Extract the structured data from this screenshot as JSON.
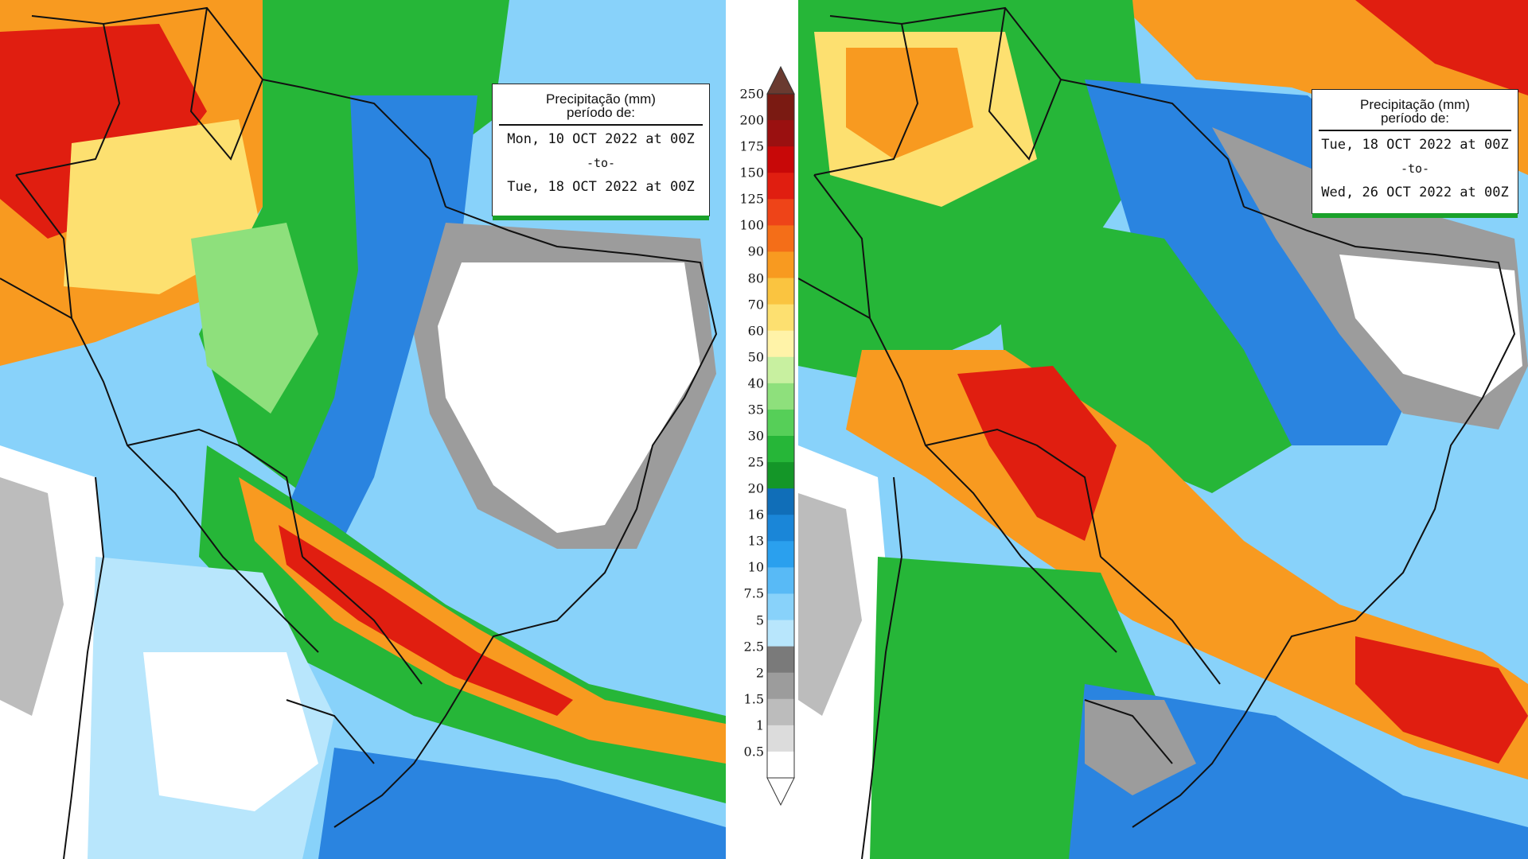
{
  "colorbar": {
    "unit_title": "Precipitação (mm)",
    "levels": [
      "250",
      "200",
      "175",
      "150",
      "125",
      "100",
      "90",
      "80",
      "70",
      "60",
      "50",
      "40",
      "35",
      "30",
      "25",
      "20",
      "16",
      "13",
      "10",
      "7.5",
      "5",
      "2.5",
      "2",
      "1.5",
      "1",
      "0.5"
    ],
    "colors": [
      "#7a1a12",
      "#9a1010",
      "#c80808",
      "#e01e10",
      "#ee4418",
      "#f46e18",
      "#f89a20",
      "#fac440",
      "#fde070",
      "#fff3a8",
      "#c8f0a0",
      "#8ee07c",
      "#56cf58",
      "#26b638",
      "#149628",
      "#106eb8",
      "#1a86d8",
      "#2aa0ee",
      "#58baf6",
      "#88d2fa",
      "#b8e6fc",
      "#7a7a7a",
      "#9c9c9c",
      "#bcbcbc",
      "#dcdcdc",
      "#ffffff"
    ],
    "top_arrow_color": "#6a3a30"
  },
  "panels": [
    {
      "title_line1": "Precipitação (mm)",
      "title_line2": "período de:",
      "start": "Mon, 10 OCT 2022 at 00Z",
      "separator": "-to-",
      "end": "Tue, 18 OCT 2022 at 00Z"
    },
    {
      "title_line1": "Precipitação (mm)",
      "title_line2": "período de:",
      "start": "Tue, 18 OCT 2022 at 00Z",
      "separator": "-to-",
      "end": "Wed, 26 OCT 2022 at 00Z"
    }
  ],
  "map_palette": {
    "white": "#ffffff",
    "grey": "#9c9c9c",
    "light_blue": "#88d2fa",
    "blue": "#2a84e0",
    "dark_blue": "#1058b8",
    "green": "#26b638",
    "light_green": "#8ee07c",
    "yellow": "#fde070",
    "orange": "#f89a20",
    "red": "#e01e10",
    "border": "#111111"
  }
}
